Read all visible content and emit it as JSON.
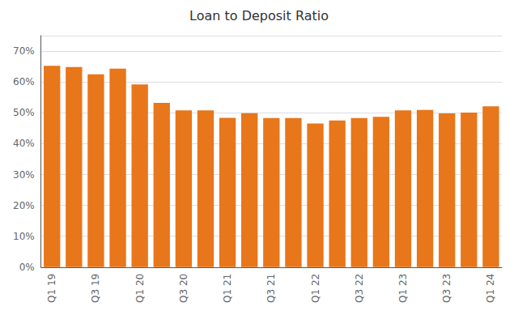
{
  "chart_data": {
    "type": "bar",
    "title": "Loan to Deposit Ratio",
    "categories": [
      "Q1 19",
      null,
      "Q3 19",
      null,
      "Q1 20",
      null,
      "Q3 20",
      null,
      "Q1 21",
      null,
      "Q3 21",
      null,
      "Q1 22",
      null,
      "Q3 22",
      null,
      "Q1 23",
      null,
      "Q3 23",
      null,
      "Q1 24"
    ],
    "values": [
      0.652,
      0.648,
      0.625,
      0.643,
      0.592,
      0.532,
      0.508,
      0.508,
      0.484,
      0.499,
      0.483,
      0.483,
      0.465,
      0.475,
      0.483,
      0.487,
      0.508,
      0.509,
      0.498,
      0.501,
      0.521
    ],
    "color": "#E8761A",
    "ylim": [
      0,
      0.75
    ],
    "yticks": [
      {
        "value": 0.0,
        "label": "0%"
      },
      {
        "value": 0.1,
        "label": "10%"
      },
      {
        "value": 0.2,
        "label": "20%"
      },
      {
        "value": 0.3,
        "label": "30%"
      },
      {
        "value": 0.4,
        "label": "40%"
      },
      {
        "value": 0.5,
        "label": "50%"
      },
      {
        "value": 0.6,
        "label": "60%"
      },
      {
        "value": 0.7,
        "label": "70%"
      }
    ],
    "grid": true
  }
}
